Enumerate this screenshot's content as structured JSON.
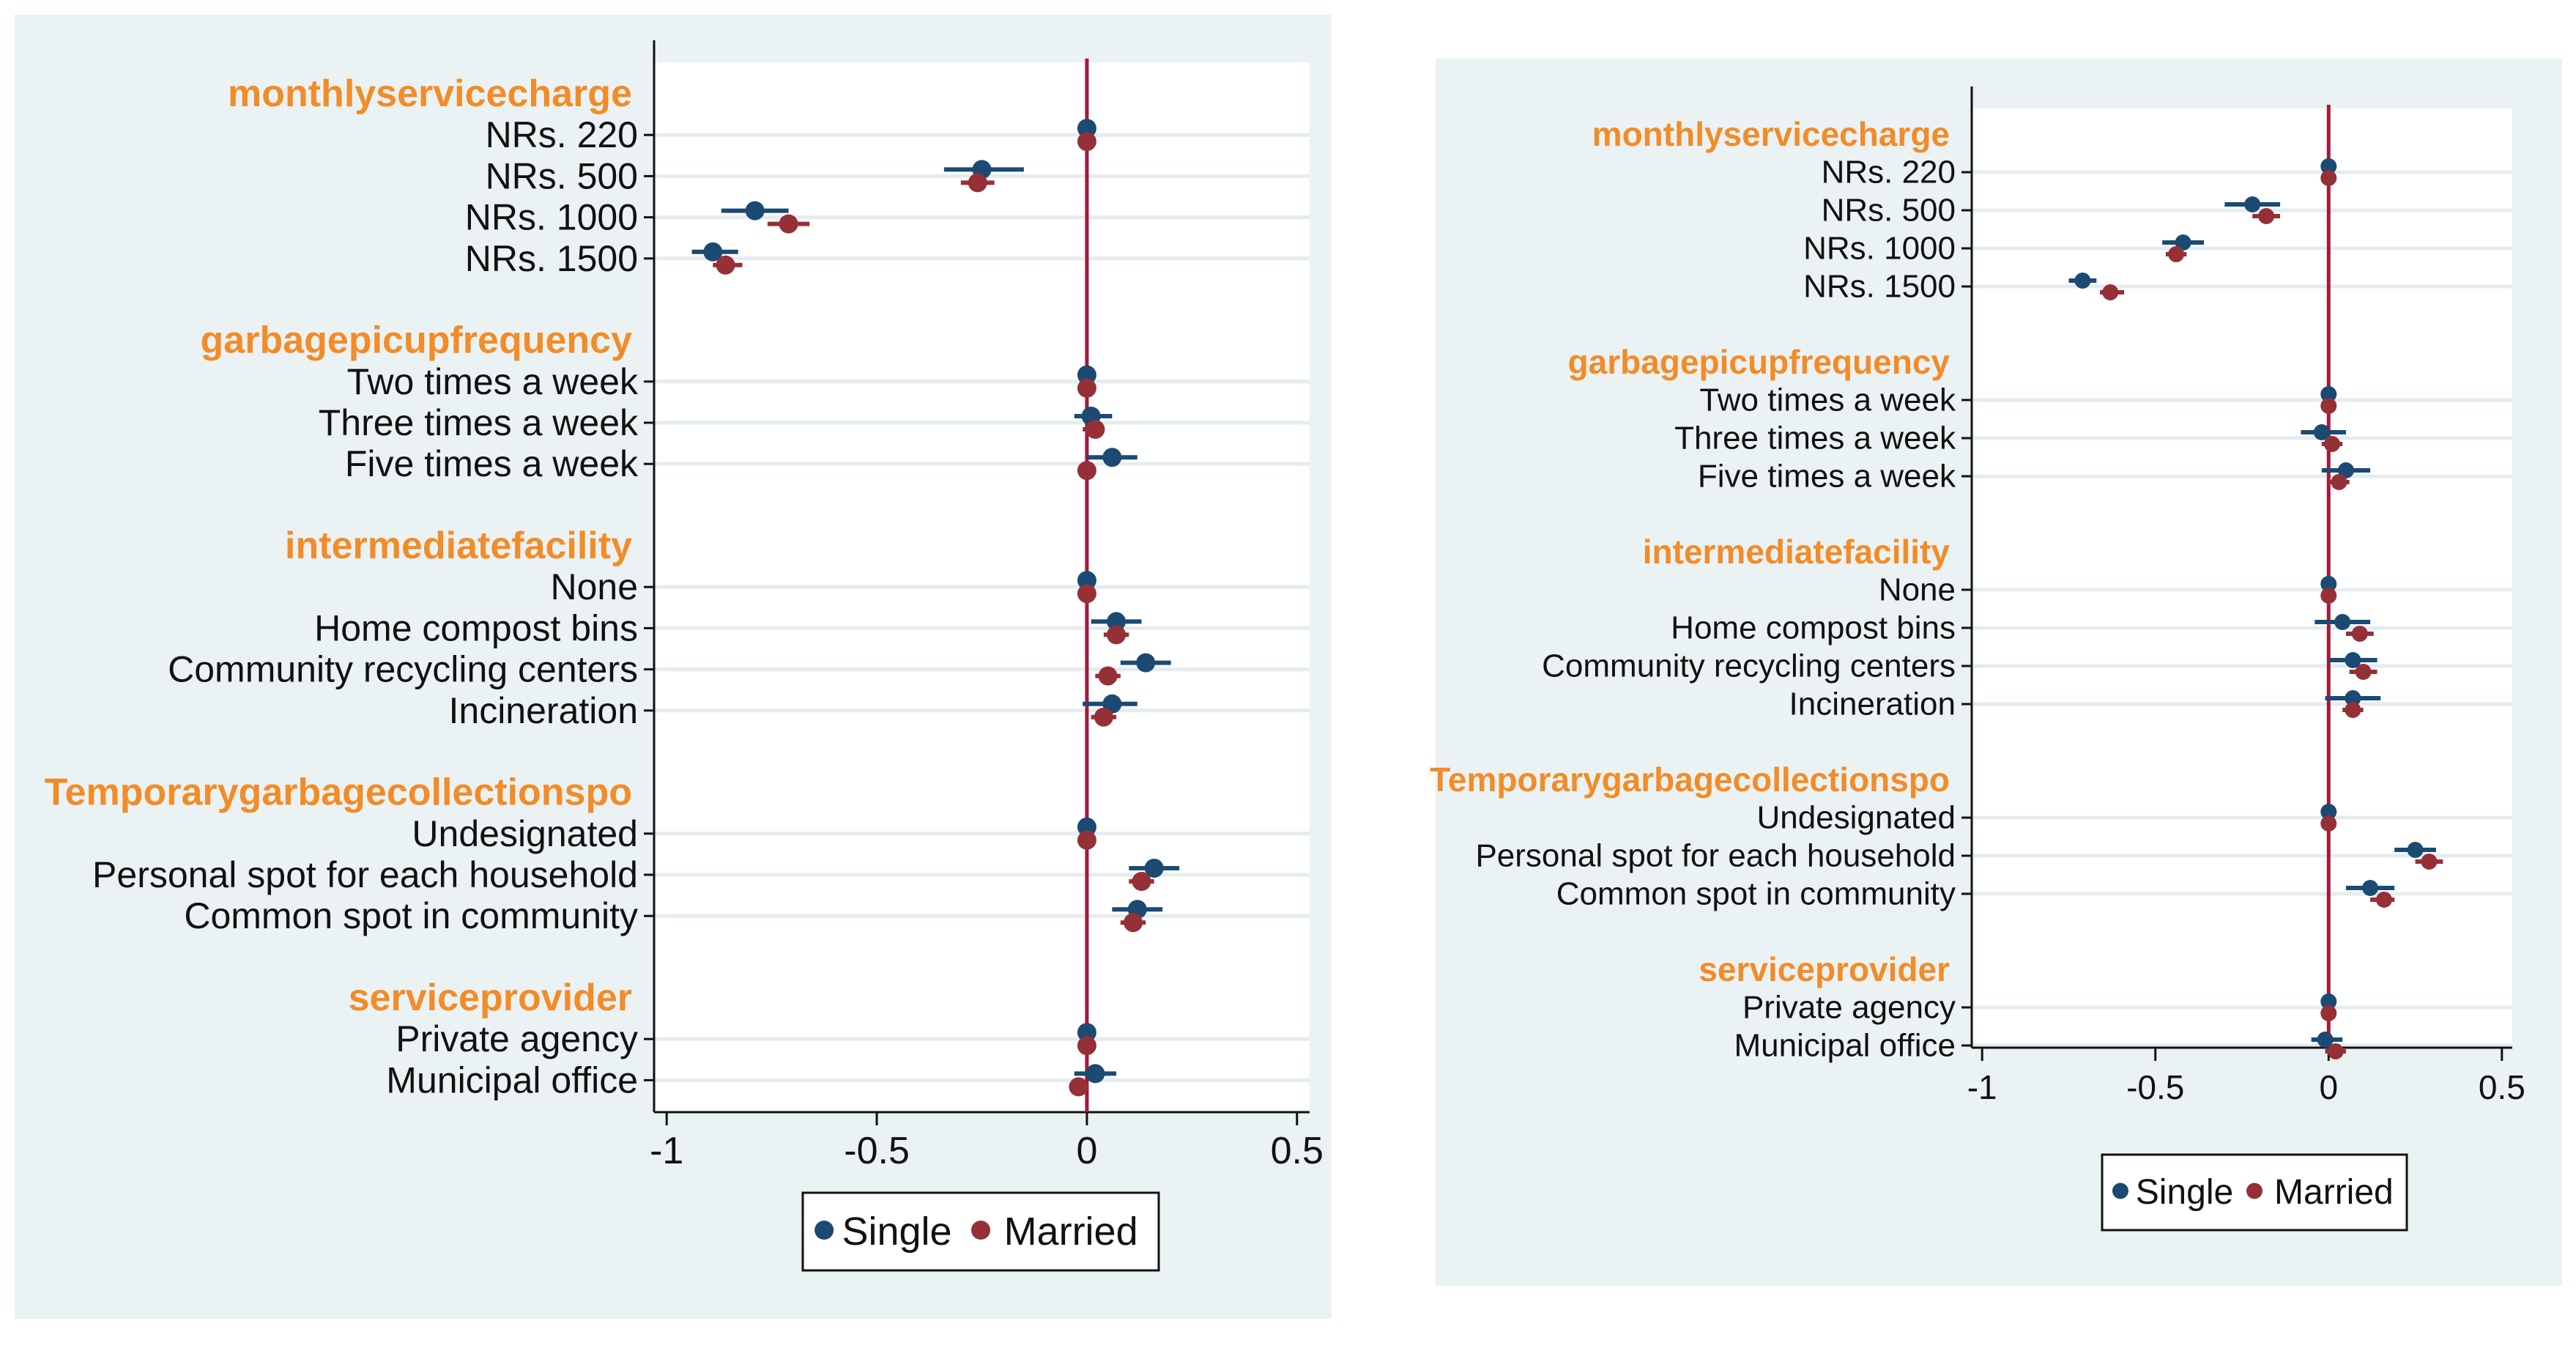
{
  "colors": {
    "background": "#ffffff",
    "panel_bg": "#eaf2f3",
    "plot_bg": "#ffffff",
    "gridline": "#e4ecef",
    "ref_line": "#a3193a",
    "group_header": "#f28c28",
    "single": "#1b4a72",
    "married": "#953037",
    "text": "#111111"
  },
  "legend": {
    "single": "Single",
    "married": "Married"
  },
  "chart_data": [
    {
      "type": "coefplot",
      "xlabel": "",
      "xlim": [
        -1.03,
        0.53
      ],
      "xticks": [
        -1,
        -0.5,
        0,
        0.5
      ],
      "xtick_labels": [
        "-1",
        "-0.5",
        "0",
        "0.5"
      ],
      "reference_line": 0,
      "groups": [
        {
          "header": "monthlyservicecharge",
          "items": [
            {
              "label": "NRs. 220",
              "single": {
                "est": 0,
                "lo": 0,
                "hi": 0
              },
              "married": {
                "est": 0,
                "lo": 0,
                "hi": 0
              }
            },
            {
              "label": "NRs. 500",
              "single": {
                "est": -0.25,
                "lo": -0.34,
                "hi": -0.15
              },
              "married": {
                "est": -0.26,
                "lo": -0.3,
                "hi": -0.22
              }
            },
            {
              "label": "NRs. 1000",
              "single": {
                "est": -0.79,
                "lo": -0.87,
                "hi": -0.71
              },
              "married": {
                "est": -0.71,
                "lo": -0.76,
                "hi": -0.66
              }
            },
            {
              "label": "NRs. 1500",
              "single": {
                "est": -0.89,
                "lo": -0.94,
                "hi": -0.83
              },
              "married": {
                "est": -0.86,
                "lo": -0.89,
                "hi": -0.82
              }
            }
          ]
        },
        {
          "header": "garbagepicupfrequency",
          "items": [
            {
              "label": "Two times a week",
              "single": {
                "est": 0,
                "lo": 0,
                "hi": 0
              },
              "married": {
                "est": 0,
                "lo": 0,
                "hi": 0
              }
            },
            {
              "label": "Three times a week",
              "single": {
                "est": 0.01,
                "lo": -0.03,
                "hi": 0.06
              },
              "married": {
                "est": 0.02,
                "lo": -0.01,
                "hi": 0.04
              }
            },
            {
              "label": "Five times a week",
              "single": {
                "est": 0.06,
                "lo": 0.0,
                "hi": 0.12
              },
              "married": {
                "est": 0.0,
                "lo": -0.02,
                "hi": 0.02
              }
            }
          ]
        },
        {
          "header": "intermediatefacility",
          "items": [
            {
              "label": "None",
              "single": {
                "est": 0,
                "lo": 0,
                "hi": 0
              },
              "married": {
                "est": 0,
                "lo": 0,
                "hi": 0
              }
            },
            {
              "label": "Home compost bins",
              "single": {
                "est": 0.07,
                "lo": 0.01,
                "hi": 0.13
              },
              "married": {
                "est": 0.07,
                "lo": 0.04,
                "hi": 0.1
              }
            },
            {
              "label": "Community recycling centers",
              "single": {
                "est": 0.14,
                "lo": 0.08,
                "hi": 0.2
              },
              "married": {
                "est": 0.05,
                "lo": 0.02,
                "hi": 0.08
              }
            },
            {
              "label": "Incineration",
              "single": {
                "est": 0.06,
                "lo": -0.01,
                "hi": 0.12
              },
              "married": {
                "est": 0.04,
                "lo": 0.01,
                "hi": 0.07
              }
            }
          ]
        },
        {
          "header": "Temporarygarbagecollectionspo",
          "items": [
            {
              "label": "Undesignated",
              "single": {
                "est": 0,
                "lo": 0,
                "hi": 0
              },
              "married": {
                "est": 0,
                "lo": 0,
                "hi": 0
              }
            },
            {
              "label": "Personal spot for each household",
              "single": {
                "est": 0.16,
                "lo": 0.1,
                "hi": 0.22
              },
              "married": {
                "est": 0.13,
                "lo": 0.1,
                "hi": 0.16
              }
            },
            {
              "label": "Common spot in community",
              "single": {
                "est": 0.12,
                "lo": 0.06,
                "hi": 0.18
              },
              "married": {
                "est": 0.11,
                "lo": 0.08,
                "hi": 0.14
              }
            }
          ]
        },
        {
          "header": "serviceprovider",
          "items": [
            {
              "label": "Private agency",
              "single": {
                "est": 0,
                "lo": 0,
                "hi": 0
              },
              "married": {
                "est": 0,
                "lo": 0,
                "hi": 0
              }
            },
            {
              "label": "Municipal office",
              "single": {
                "est": 0.02,
                "lo": -0.03,
                "hi": 0.07
              },
              "married": {
                "est": -0.02,
                "lo": -0.04,
                "hi": 0.0
              }
            }
          ]
        }
      ]
    },
    {
      "type": "coefplot",
      "xlabel": "",
      "xlim": [
        -1.03,
        0.53
      ],
      "xticks": [
        -1,
        -0.5,
        0,
        0.5
      ],
      "xtick_labels": [
        "-1",
        "-0.5",
        "0",
        "0.5"
      ],
      "reference_line": 0,
      "groups": [
        {
          "header": "monthlyservicecharge",
          "items": [
            {
              "label": "NRs. 220",
              "single": {
                "est": 0,
                "lo": 0,
                "hi": 0
              },
              "married": {
                "est": 0,
                "lo": 0,
                "hi": 0
              }
            },
            {
              "label": "NRs. 500",
              "single": {
                "est": -0.22,
                "lo": -0.3,
                "hi": -0.14
              },
              "married": {
                "est": -0.18,
                "lo": -0.22,
                "hi": -0.14
              }
            },
            {
              "label": "NRs. 1000",
              "single": {
                "est": -0.42,
                "lo": -0.48,
                "hi": -0.36
              },
              "married": {
                "est": -0.44,
                "lo": -0.47,
                "hi": -0.41
              }
            },
            {
              "label": "NRs. 1500",
              "single": {
                "est": -0.71,
                "lo": -0.75,
                "hi": -0.67
              },
              "married": {
                "est": -0.63,
                "lo": -0.66,
                "hi": -0.59
              }
            }
          ]
        },
        {
          "header": "garbagepicupfrequency",
          "items": [
            {
              "label": "Two times a week",
              "single": {
                "est": 0,
                "lo": 0,
                "hi": 0
              },
              "married": {
                "est": 0,
                "lo": 0,
                "hi": 0
              }
            },
            {
              "label": "Three times a week",
              "single": {
                "est": -0.02,
                "lo": -0.08,
                "hi": 0.05
              },
              "married": {
                "est": 0.01,
                "lo": -0.02,
                "hi": 0.04
              }
            },
            {
              "label": "Five times a week",
              "single": {
                "est": 0.05,
                "lo": -0.02,
                "hi": 0.12
              },
              "married": {
                "est": 0.03,
                "lo": 0.0,
                "hi": 0.06
              }
            }
          ]
        },
        {
          "header": "intermediatefacility",
          "items": [
            {
              "label": "None",
              "single": {
                "est": 0,
                "lo": 0,
                "hi": 0
              },
              "married": {
                "est": 0,
                "lo": 0,
                "hi": 0
              }
            },
            {
              "label": "Home compost bins",
              "single": {
                "est": 0.04,
                "lo": -0.04,
                "hi": 0.12
              },
              "married": {
                "est": 0.09,
                "lo": 0.05,
                "hi": 0.13
              }
            },
            {
              "label": "Community recycling centers",
              "single": {
                "est": 0.07,
                "lo": 0.0,
                "hi": 0.14
              },
              "married": {
                "est": 0.1,
                "lo": 0.06,
                "hi": 0.14
              }
            },
            {
              "label": "Incineration",
              "single": {
                "est": 0.07,
                "lo": -0.01,
                "hi": 0.15
              },
              "married": {
                "est": 0.07,
                "lo": 0.04,
                "hi": 0.1
              }
            }
          ]
        },
        {
          "header": "Temporarygarbagecollectionspo",
          "items": [
            {
              "label": "Undesignated",
              "single": {
                "est": 0,
                "lo": 0,
                "hi": 0
              },
              "married": {
                "est": 0,
                "lo": 0,
                "hi": 0
              }
            },
            {
              "label": "Personal spot for each household",
              "single": {
                "est": 0.25,
                "lo": 0.19,
                "hi": 0.31
              },
              "married": {
                "est": 0.29,
                "lo": 0.25,
                "hi": 0.33
              }
            },
            {
              "label": "Common spot in community",
              "single": {
                "est": 0.12,
                "lo": 0.05,
                "hi": 0.19
              },
              "married": {
                "est": 0.16,
                "lo": 0.12,
                "hi": 0.19
              }
            }
          ]
        },
        {
          "header": "serviceprovider",
          "items": [
            {
              "label": "Private agency",
              "single": {
                "est": 0,
                "lo": 0,
                "hi": 0
              },
              "married": {
                "est": 0,
                "lo": 0,
                "hi": 0
              }
            },
            {
              "label": "Municipal office",
              "single": {
                "est": -0.01,
                "lo": -0.05,
                "hi": 0.04
              },
              "married": {
                "est": 0.02,
                "lo": -0.01,
                "hi": 0.05
              }
            }
          ]
        }
      ]
    }
  ]
}
